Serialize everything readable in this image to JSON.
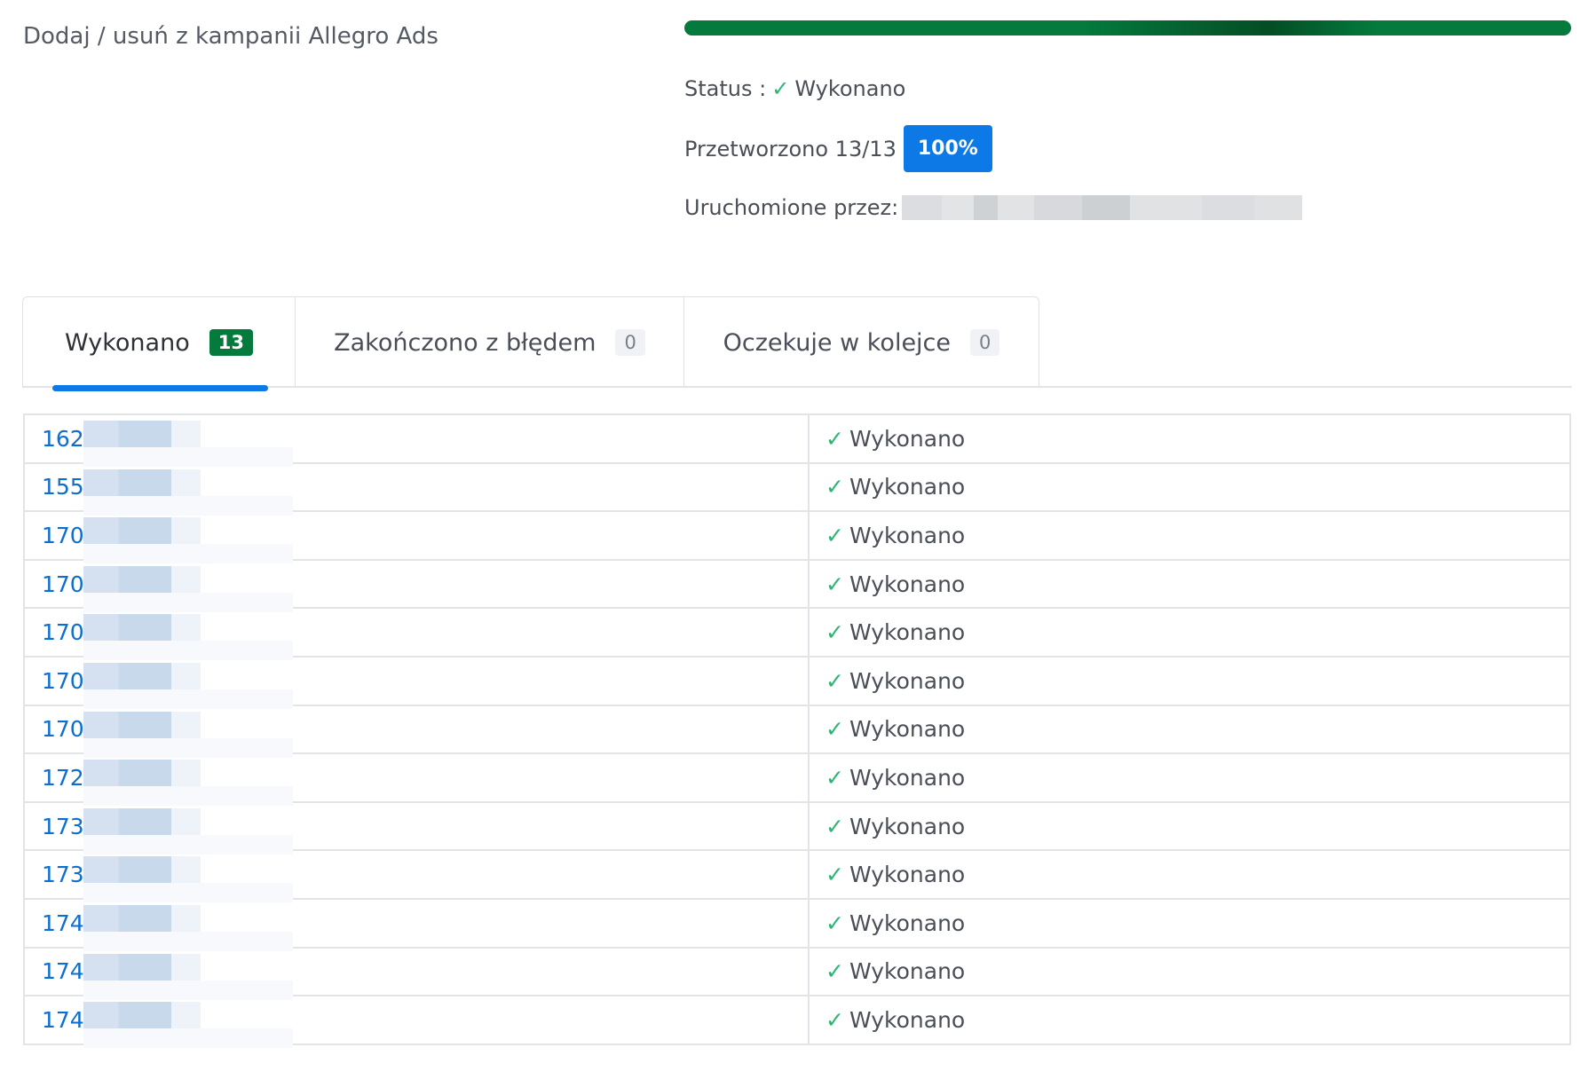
{
  "header": {
    "title": "Dodaj / usuń z kampanii Allegro Ads"
  },
  "job": {
    "progress_percent": 100,
    "status_label": "Status :",
    "status_icon": "check-icon",
    "status_value": "Wykonano",
    "processed_text": "Przetworzono 13/13",
    "processed_badge": "100%",
    "started_by_label": "Uruchomione przez:"
  },
  "tabs": [
    {
      "label": "Wykonano",
      "count": "13",
      "active": true
    },
    {
      "label": "Zakończono z błędem",
      "count": "0",
      "active": false
    },
    {
      "label": "Oczekuje w kolejce",
      "count": "0",
      "active": false
    }
  ],
  "rows": [
    {
      "id": "1625",
      "status": "Wykonano"
    },
    {
      "id": "1555",
      "status": "Wykonano"
    },
    {
      "id": "1700",
      "status": "Wykonano"
    },
    {
      "id": "1702",
      "status": "Wykonano"
    },
    {
      "id": "1703",
      "status": "Wykonano"
    },
    {
      "id": "1704",
      "status": "Wykonano"
    },
    {
      "id": "1706",
      "status": "Wykonano"
    },
    {
      "id": "1727",
      "status": "Wykonano"
    },
    {
      "id": "1738",
      "status": "Wykonano"
    },
    {
      "id": "1739",
      "status": "Wykonano"
    },
    {
      "id": "1741",
      "status": "Wykonano"
    },
    {
      "id": "1744",
      "status": "Wykonano"
    },
    {
      "id": "1744",
      "status": "Wykonano"
    }
  ],
  "colors": {
    "success": "#047a3d",
    "accent": "#0c79e6",
    "check": "#2bb673",
    "link": "#0c6ecf"
  }
}
